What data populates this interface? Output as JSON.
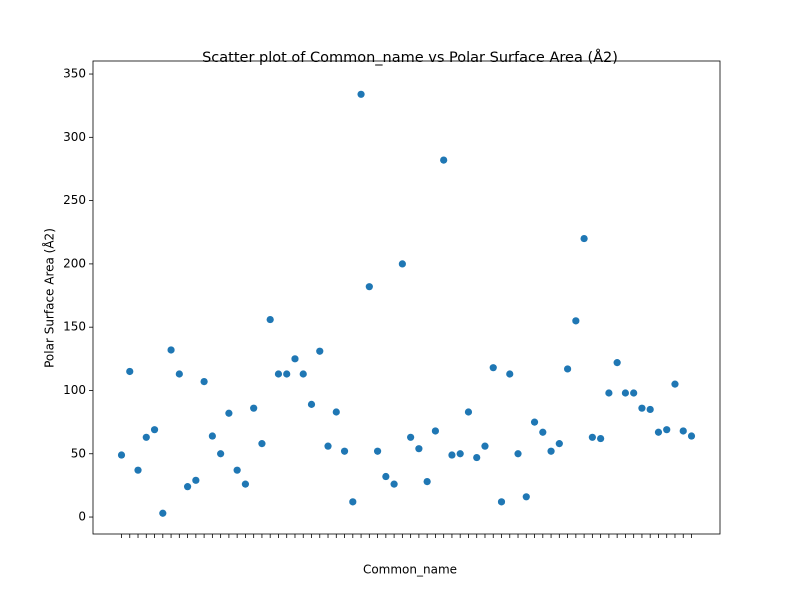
{
  "chart_data": {
    "type": "scatter",
    "title": "Scatter plot of Common_name vs Polar Surface Area (Å2)",
    "x_label": "Common_name",
    "y_label": "Polar Surface Area (Å2)",
    "color": "#1f77b4",
    "categories": [
      null,
      null,
      null,
      null,
      null,
      null,
      null,
      null,
      null,
      null,
      null,
      null,
      null,
      null,
      null,
      null,
      null,
      null,
      null,
      null,
      null,
      null,
      null,
      null,
      null,
      null,
      null,
      null,
      null,
      null,
      null,
      null,
      null,
      null,
      null,
      null,
      null,
      null,
      null,
      null,
      null,
      null,
      null,
      null,
      null,
      null,
      null,
      null,
      null,
      null,
      null,
      null,
      null,
      null,
      null,
      null,
      null,
      null,
      null,
      null,
      null,
      null,
      null,
      null,
      null,
      null,
      null,
      null,
      null,
      null
    ],
    "values": [
      49,
      115,
      37,
      63,
      69,
      3,
      132,
      113,
      24,
      29,
      107,
      64,
      50,
      82,
      37,
      26,
      86,
      58,
      156,
      113,
      113,
      125,
      113,
      89,
      131,
      56,
      83,
      52,
      12,
      334,
      182,
      52,
      32,
      26,
      200,
      63,
      54,
      28,
      68,
      282,
      49,
      50,
      83,
      47,
      56,
      118,
      12,
      113,
      50,
      16,
      75,
      67,
      52,
      58,
      117,
      155,
      220,
      63,
      62,
      98,
      122,
      98,
      98,
      86,
      85,
      67,
      69,
      105,
      68,
      64
    ],
    "ylim": [
      -13.4,
      360.3
    ],
    "yticks": [
      0,
      50,
      100,
      150,
      200,
      250,
      300,
      350
    ]
  }
}
